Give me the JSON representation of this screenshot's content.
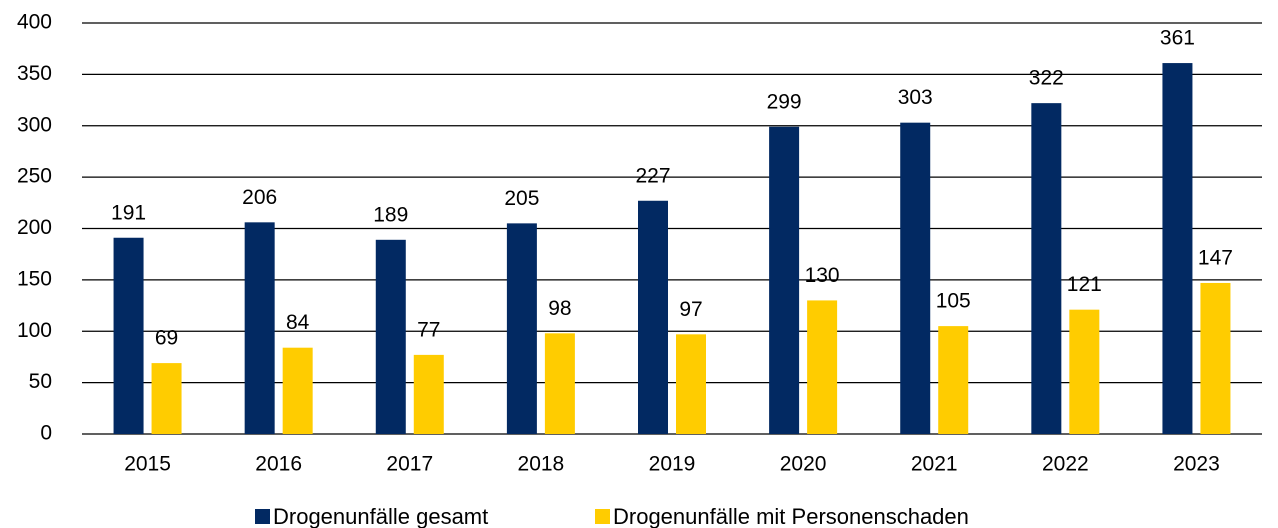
{
  "chart_data": {
    "type": "bar",
    "categories": [
      "2015",
      "2016",
      "2017",
      "2018",
      "2019",
      "2020",
      "2021",
      "2022",
      "2023"
    ],
    "series": [
      {
        "name": "Drogenunfälle gesamt",
        "color": "#022962",
        "values": [
          191,
          206,
          189,
          205,
          227,
          299,
          303,
          322,
          361
        ]
      },
      {
        "name": "Drogenunfälle mit Personenschaden",
        "color": "#ffcc00",
        "values": [
          69,
          84,
          77,
          98,
          97,
          130,
          105,
          121,
          147
        ]
      }
    ],
    "ylim": [
      0,
      400
    ],
    "yticks": [
      0,
      50,
      100,
      150,
      200,
      250,
      300,
      350,
      400
    ],
    "grid": true,
    "legend": "bottom"
  }
}
